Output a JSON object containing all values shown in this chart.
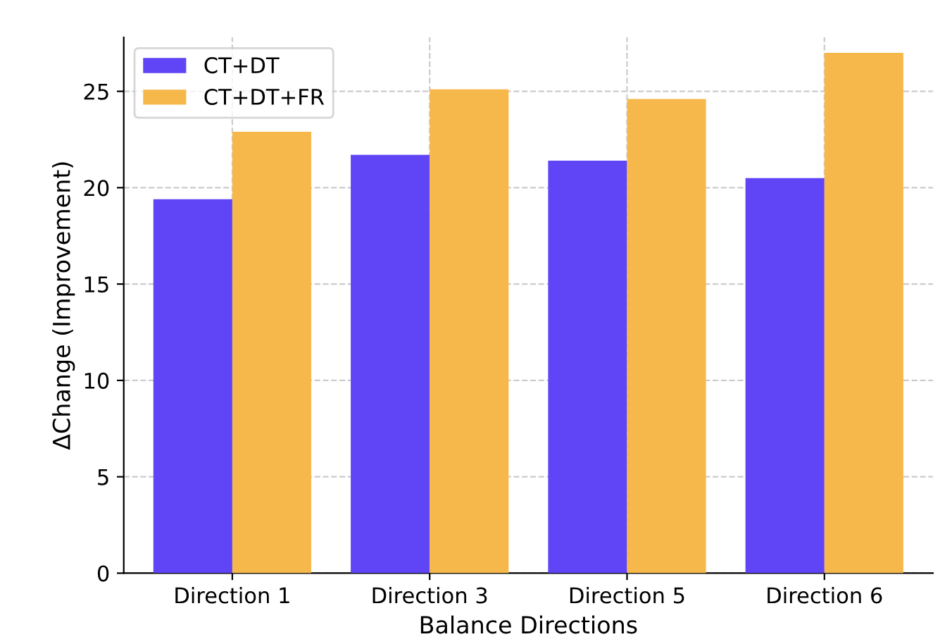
{
  "chart_data": {
    "type": "bar",
    "xlabel": "Balance Directions",
    "ylabel": "ΔChange (Improvement)",
    "categories": [
      "Direction 1",
      "Direction 3",
      "Direction 5",
      "Direction 6"
    ],
    "series": [
      {
        "name": "CT+DT",
        "color": "#5f45f5",
        "values": [
          19.4,
          21.7,
          21.4,
          20.5
        ]
      },
      {
        "name": "CT+DT+FR",
        "color": "#f7b84b",
        "values": [
          22.9,
          25.1,
          24.6,
          27.0
        ]
      }
    ],
    "ylim": [
      0,
      27.8
    ],
    "yticks": [
      0,
      5,
      10,
      15,
      20,
      25
    ],
    "grid": true,
    "legend": "top left"
  }
}
